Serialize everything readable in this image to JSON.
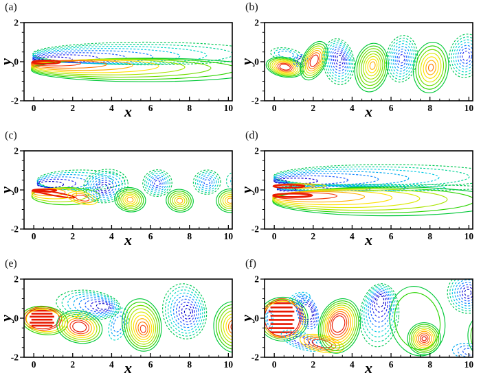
{
  "style": {
    "background": "#ffffff",
    "frame_color": "#000000",
    "positive_line_style": "solid",
    "negative_line_style": "dashed",
    "positive_palette": [
      "#00c838",
      "#2ad400",
      "#70dc00",
      "#a8e400",
      "#dce800",
      "#ffe000",
      "#ffb000",
      "#ff7800",
      "#f54016",
      "#e81800"
    ],
    "negative_palette": [
      "#00c853",
      "#00d294",
      "#00d8c4",
      "#00c8e4",
      "#00a8f0",
      "#0984ff",
      "#1254ff",
      "#2428f0",
      "#1000dc",
      "#0000c0"
    ]
  },
  "chart_data": {
    "type": "contour",
    "axes": {
      "x_label": "x",
      "y_label": "y",
      "x_ticks": [
        0,
        2,
        4,
        6,
        8,
        10
      ],
      "y_ticks": [
        2,
        0,
        -2
      ],
      "x_minor_step": 0.5,
      "y_minor_step": 0.5,
      "x_major_step": 2,
      "y_major_step": 2,
      "x_range": [
        0,
        10
      ],
      "y_range": [
        -2,
        2
      ],
      "x_view": [
        -0.5,
        10.2
      ],
      "y_view": [
        -2,
        2
      ]
    },
    "panels": [
      {
        "label": "(a)",
        "features": [
          {
            "sign": "neg",
            "anchor": "left",
            "x": -0.05,
            "y": 0.42,
            "yi": 0.08,
            "rx": 5.85,
            "ry": 0.58,
            "iry": 0.1,
            "inner": 0.055,
            "rings": 9
          },
          {
            "sign": "pos",
            "anchor": "left",
            "x": -0.12,
            "y": -0.42,
            "yi": -0.04,
            "rx": 5.95,
            "ry": 0.6,
            "iry": 0.1,
            "inner": 0.1,
            "rings": 9
          },
          {
            "sign": "pos",
            "anchor": "left",
            "x": -0.08,
            "y": -0.02,
            "rx": 0.72,
            "ry": 0.085,
            "rings": 1,
            "inner": 1,
            "sw": 2.3
          }
        ]
      },
      {
        "label": "(b)",
        "features": [
          {
            "sign": "neg",
            "x": 0.6,
            "y": 0.38,
            "rx": 0.8,
            "ry": 0.32,
            "rot": 8,
            "rings": 3,
            "c0": 0.05,
            "c1": 0.45,
            "inner": 0.5
          },
          {
            "sign": "pos",
            "x": 0.55,
            "y": -0.28,
            "rx": 0.98,
            "ry": 0.5,
            "rot": 10,
            "rings": 8,
            "inner": 0.28
          },
          {
            "sign": "neg",
            "x": 1.35,
            "y": 0.05,
            "rx": 0.38,
            "ry": 0.3,
            "rot": -15,
            "rings": 3,
            "c0": 0.6,
            "inner": 0.4
          },
          {
            "sign": "pos",
            "x": 2.05,
            "y": 0.05,
            "rx": 0.6,
            "ry": 1.05,
            "rot": 25,
            "rings": 7,
            "inner": 0.3,
            "c1": 0.98
          },
          {
            "sign": "neg",
            "x": 3.3,
            "y": 0.0,
            "xi": 3.35,
            "yi": 0.15,
            "rx": 0.8,
            "ry": 1.18,
            "rot": -8,
            "rings": 9,
            "inner": 0.16
          },
          {
            "sign": "pos",
            "x": 5.0,
            "y": -0.3,
            "xi": 5.05,
            "yi": -0.2,
            "rx": 0.85,
            "ry": 1.25,
            "rot": 10,
            "rings": 8,
            "inner": 0.16,
            "c1": 0.62
          },
          {
            "sign": "neg",
            "x": 6.55,
            "y": 0.15,
            "rx": 0.8,
            "ry": 1.2,
            "rot": 8,
            "rings": 8,
            "inner": 0.18,
            "c1": 0.8
          },
          {
            "sign": "pos",
            "x": 8.05,
            "y": -0.3,
            "rx": 0.9,
            "ry": 1.3,
            "rot": 8,
            "rings": 7,
            "inner": 0.14,
            "c1": 0.82
          },
          {
            "sign": "neg",
            "x": 9.85,
            "y": 0.3,
            "rx": 0.85,
            "ry": 1.12,
            "rot": 10,
            "rings": 7,
            "inner": 0.22,
            "c1": 0.75
          }
        ]
      },
      {
        "label": "(c)",
        "features": [
          {
            "sign": "neg",
            "anchor": "left",
            "x": 0.18,
            "y": 0.5,
            "yi": 0.28,
            "rx": 2.25,
            "ry": 0.52,
            "iry": 0.3,
            "inner": 0.3,
            "rings": 6
          },
          {
            "sign": "pos",
            "anchor": "left",
            "x": -0.1,
            "y": -0.32,
            "yi": -0.05,
            "rx": 1.75,
            "ry": 0.44,
            "iry": 0.22,
            "inner": 0.32,
            "rings": 5,
            "c0": 0.1,
            "c1": 0.9
          },
          {
            "sign": "pos",
            "x": 1.05,
            "y": -0.2,
            "rx": 1.08,
            "ry": 0.085,
            "rot": 10,
            "rings": 1,
            "inner": 1,
            "sw": 2.0
          },
          {
            "sign": "pos",
            "x": 0.55,
            "y": -0.02,
            "rx": 0.62,
            "ry": 0.06,
            "rings": 1,
            "inner": 1,
            "sw": 2.0
          },
          {
            "sign": "pos",
            "x": 2.5,
            "y": -0.42,
            "rx": 0.78,
            "ry": 0.3,
            "rot": 12,
            "rings": 3,
            "c0": 0.5,
            "c1": 0.85,
            "inner": 0.45
          },
          {
            "sign": "neg",
            "x": 3.7,
            "y": 0.2,
            "xi": 3.6,
            "yi": 0.12,
            "rx": 1.15,
            "ry": 0.85,
            "rot": -10,
            "rings": 8,
            "inner": 0.18
          },
          {
            "sign": "pos",
            "x": 4.95,
            "y": -0.5,
            "rx": 0.8,
            "ry": 0.62,
            "rot": 8,
            "rings": 7,
            "inner": 0.2,
            "c1": 0.72
          },
          {
            "sign": "neg",
            "x": 6.35,
            "y": 0.35,
            "rx": 0.75,
            "ry": 0.68,
            "rot": -5,
            "rings": 7,
            "inner": 0.2,
            "c1": 0.78
          },
          {
            "sign": "pos",
            "x": 7.5,
            "y": -0.55,
            "rx": 0.7,
            "ry": 0.58,
            "rot": 8,
            "rings": 6,
            "inner": 0.22,
            "c1": 0.62
          },
          {
            "sign": "neg",
            "x": 8.9,
            "y": 0.4,
            "rx": 0.7,
            "ry": 0.62,
            "rot": -5,
            "rings": 6,
            "inner": 0.22,
            "c1": 0.72
          },
          {
            "sign": "pos",
            "x": 10.1,
            "y": -0.55,
            "rx": 0.72,
            "ry": 0.6,
            "rings": 6,
            "inner": 0.22,
            "c1": 0.7
          },
          {
            "sign": "neg",
            "x": 10.45,
            "y": 0.45,
            "rx": 0.55,
            "ry": 0.5,
            "rings": 2,
            "c0": 0.1,
            "c1": 0.3,
            "inner": 0.6
          }
        ]
      },
      {
        "label": "(d)",
        "features": [
          {
            "sign": "neg",
            "anchor": "left",
            "x": -0.02,
            "y": 0.72,
            "yi": 0.42,
            "rx": 5.8,
            "ry": 0.58,
            "iry": 0.12,
            "inner": 0.06,
            "rings": 8
          },
          {
            "sign": "neg",
            "anchor": "left",
            "x": 0.15,
            "y": 0.12,
            "yi": 0.02,
            "rx": 5.3,
            "ry": 0.17,
            "iry": 0.45,
            "inner": 0.09,
            "rings": 6
          },
          {
            "sign": "pos",
            "anchor": "left",
            "x": -0.08,
            "y": -0.58,
            "yi": -0.26,
            "rx": 5.9,
            "ry": 0.74,
            "iry": 0.1,
            "inner": 0.16,
            "rings": 8
          },
          {
            "sign": "pos",
            "anchor": "left",
            "x": -0.05,
            "y": 0.2,
            "rx": 1.35,
            "ry": 0.12,
            "iry": 0.6,
            "inner": 0.35,
            "rings": 4,
            "c0": 0.45
          },
          {
            "sign": "pos",
            "anchor": "left",
            "x": -0.05,
            "y": 0.19,
            "rx": 0.8,
            "ry": 0.075,
            "rings": 1,
            "inner": 1,
            "sw": 2.3
          },
          {
            "sign": "pos",
            "anchor": "left",
            "x": -0.05,
            "y": -0.28,
            "rx": 1.0,
            "ry": 0.09,
            "rings": 1,
            "inner": 1,
            "sw": 2.3
          }
        ]
      },
      {
        "label": "(e)",
        "features": [
          {
            "shape": "stripes",
            "sign": "pos",
            "x": 0.42,
            "y": 0.0,
            "rx": 0.63,
            "ry": 0.46,
            "count": 6
          },
          {
            "sign": "pos",
            "x": 0.45,
            "y": -0.02,
            "rx": 0.98,
            "ry": 0.6,
            "rings": 2,
            "c0": 0.92,
            "inner": 0.88
          },
          {
            "sign": "pos",
            "x": 0.55,
            "y": -0.12,
            "rx": 1.2,
            "ry": 0.72,
            "rot": 8,
            "rings": 3,
            "c0": 0.08,
            "c1": 0.55,
            "inner": 0.78
          },
          {
            "sign": "pos",
            "x": 2.35,
            "y": -0.45,
            "rx": 1.18,
            "ry": 0.82,
            "rot": 12,
            "rings": 7,
            "inner": 0.3
          },
          {
            "sign": "neg",
            "x": 2.8,
            "y": 0.68,
            "xi": 3.55,
            "yi": 0.6,
            "rx": 1.65,
            "ry": 0.74,
            "rot": 6,
            "rings": 8,
            "inner": 0.2
          },
          {
            "sign": "neg",
            "x": 4.35,
            "y": -0.3,
            "rx": 0.45,
            "ry": 0.85,
            "rot": 18,
            "rings": 3,
            "c0": 0.25,
            "c1": 0.6,
            "inner": 0.5
          },
          {
            "sign": "pos",
            "x": 5.55,
            "y": -0.35,
            "xi": 5.62,
            "yi": -0.55,
            "rx": 1.0,
            "ry": 1.35,
            "rot": -10,
            "rings": 9,
            "inner": 0.14,
            "c1": 0.92
          },
          {
            "sign": "neg",
            "x": 7.75,
            "y": 0.35,
            "xi": 7.9,
            "yi": 0.3,
            "rx": 1.12,
            "ry": 1.42,
            "rot": -10,
            "rings": 9,
            "inner": 0.14
          },
          {
            "sign": "pos",
            "x": 10.3,
            "y": -0.45,
            "rx": 1.05,
            "ry": 1.3,
            "rot": -5,
            "rings": 8,
            "inner": 0.16,
            "c1": 0.85
          }
        ]
      },
      {
        "label": "(f)",
        "features": [
          {
            "sign": "neg",
            "x": -0.25,
            "y": 0.0,
            "rx": 0.18,
            "ry": 0.7,
            "rings": 2,
            "c0": 0.35,
            "c1": 0.55,
            "inner": 0.6
          },
          {
            "shape": "stripes",
            "sign": "pos",
            "x": 0.37,
            "y": 0.02,
            "rx": 0.66,
            "ry": 0.85,
            "count": 8
          },
          {
            "sign": "pos",
            "x": 0.4,
            "y": 0.0,
            "rx": 0.98,
            "ry": 1.0,
            "rings": 2,
            "c0": 0.9,
            "inner": 0.92
          },
          {
            "sign": "pos",
            "x": 0.45,
            "y": -0.05,
            "rx": 1.28,
            "ry": 1.12,
            "rings": 3,
            "c0": 0.05,
            "c1": 0.5,
            "inner": 0.82
          },
          {
            "sign": "neg",
            "x": 1.7,
            "y": 0.3,
            "rx": 0.52,
            "ry": 0.88,
            "rot": -18,
            "rings": 5,
            "c0": 0.5,
            "inner": 0.45
          },
          {
            "sign": "neg",
            "x": 1.4,
            "y": -1.15,
            "rx": 1.1,
            "ry": 0.42,
            "rot": 20,
            "rings": 4,
            "c0": 0.35,
            "c1": 0.75,
            "inner": 0.4
          },
          {
            "sign": "neg",
            "x": 1.3,
            "y": 1.0,
            "rx": 0.55,
            "ry": 0.3,
            "rot": -15,
            "rings": 3,
            "c0": 0.3,
            "c1": 0.6,
            "inner": 0.4
          },
          {
            "sign": "pos",
            "x": 2.45,
            "y": -1.3,
            "rx": 1.15,
            "ry": 0.42,
            "rot": 12,
            "rings": 4,
            "c0": 0.5,
            "c1": 0.95,
            "inner": 0.45
          },
          {
            "sign": "pos",
            "x": 3.35,
            "y": -0.4,
            "xi": 3.3,
            "yi": -0.3,
            "rx": 1.05,
            "ry": 1.42,
            "rot": 16,
            "rings": 9,
            "inner": 0.3
          },
          {
            "sign": "neg",
            "x": 5.4,
            "y": 0.15,
            "xi": 5.45,
            "yi": 0.85,
            "rx": 1.0,
            "ry": 1.62,
            "rot": 6,
            "rings": 9,
            "inner": 0.18
          },
          {
            "sign": "pos",
            "x": 7.7,
            "y": -1.05,
            "rx": 0.85,
            "ry": 0.82,
            "rings": 9,
            "inner": 0.13
          },
          {
            "sign": "pos",
            "x": 7.35,
            "y": -0.15,
            "rx": 1.4,
            "ry": 1.8,
            "rot": -14,
            "rings": 2,
            "c0": 0.03,
            "c1": 0.15,
            "inner": 0.82
          },
          {
            "sign": "neg",
            "x": 9.95,
            "y": 1.3,
            "rx": 1.05,
            "ry": 1.05,
            "rings": 8,
            "inner": 0.16
          },
          {
            "sign": "neg",
            "x": 10.05,
            "y": -1.72,
            "rx": 0.9,
            "ry": 0.42,
            "rot": 8,
            "rings": 3,
            "c0": 0.4,
            "c1": 0.7,
            "inner": 0.4
          },
          {
            "sign": "pos",
            "x": 10.7,
            "y": -0.9,
            "rx": 0.75,
            "ry": 1.05,
            "rings": 2,
            "c0": 0.04,
            "c1": 0.12,
            "inner": 0.8
          }
        ]
      }
    ]
  }
}
